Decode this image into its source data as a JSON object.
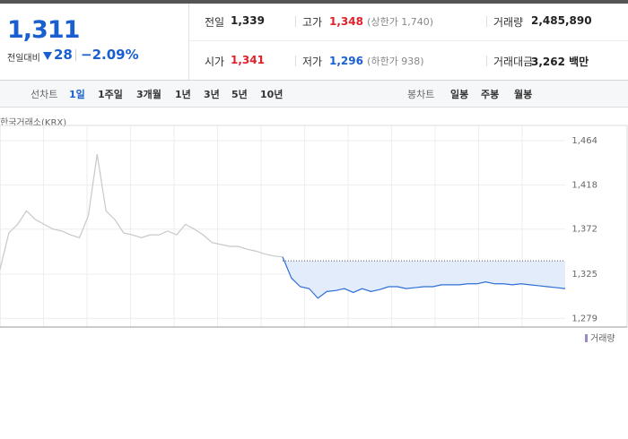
{
  "quote": {
    "price": "1,311",
    "change_label": "전일대비",
    "change": "28",
    "change_rate": "−2.09%"
  },
  "summary": {
    "rows": [
      [
        {
          "label": "전일",
          "value": "1,339"
        },
        {
          "label": "고가",
          "value": "1,348",
          "extra": "(상한가 1,740)"
        },
        {
          "label": "거래량",
          "value": "2,485,890"
        }
      ],
      [
        {
          "label": "시가",
          "value": "1,341"
        },
        {
          "label": "저가",
          "value": "1,296",
          "extra": "(하한가 938)"
        },
        {
          "label": "거래대금",
          "value": "3,262 백만"
        }
      ]
    ]
  },
  "tabs": {
    "line_label": "선차트",
    "line_periods": [
      "1일",
      "1주일",
      "3개월",
      "1년",
      "3년",
      "5년",
      "10년"
    ],
    "candle_label": "봉차트",
    "candle_periods": [
      "일봉",
      "주봉",
      "월봉"
    ]
  },
  "chart_data": {
    "type": "line",
    "title": "한국거래소(KRX)",
    "volume_label": "거래량",
    "ylim": [
      1270,
      1480
    ],
    "yticks": [
      {
        "value": 1279,
        "label": "1,279"
      },
      {
        "value": 1325,
        "label": "1,325"
      },
      {
        "value": 1372,
        "label": "1,372"
      },
      {
        "value": 1418,
        "label": "1,418"
      },
      {
        "value": 1464,
        "label": "1,464"
      }
    ],
    "grid": true,
    "reference_line": 1339,
    "series": [
      {
        "color": "#c8c8c8",
        "values": [
          1330,
          1368,
          1377,
          1391,
          1382,
          1377,
          1372,
          1370,
          1366,
          1363,
          1386,
          1450,
          1391,
          1382,
          1368,
          1366,
          1363,
          1366,
          1366,
          1370,
          1366,
          1377,
          1372,
          1366,
          1358,
          1356,
          1354,
          1354,
          1351,
          1349,
          1346,
          1344,
          1343,
          null,
          null,
          null,
          null,
          null,
          null,
          null,
          null,
          null,
          null,
          null,
          null,
          null,
          null,
          null,
          null,
          null,
          null,
          null,
          null,
          null,
          null,
          null,
          null,
          null,
          null,
          null,
          null,
          null,
          null,
          null,
          null
        ]
      },
      {
        "color": "#2d6fd6",
        "values": [
          null,
          null,
          null,
          null,
          null,
          null,
          null,
          null,
          null,
          null,
          null,
          null,
          null,
          null,
          null,
          null,
          null,
          null,
          null,
          null,
          null,
          null,
          null,
          null,
          null,
          null,
          null,
          null,
          null,
          null,
          null,
          null,
          1343,
          1321,
          1312,
          1310,
          1300,
          1307,
          1308,
          1310,
          1306,
          1310,
          1307,
          1309,
          1312,
          1312,
          1310,
          1311,
          1312,
          1312,
          1314,
          1314,
          1314,
          1315,
          1315,
          1317,
          1315,
          1315,
          1314,
          1315,
          1314,
          1313,
          1312,
          1311,
          1310
        ]
      }
    ]
  }
}
